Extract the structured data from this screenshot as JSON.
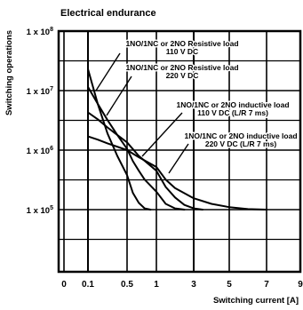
{
  "chart_data": {
    "type": "line",
    "title": "Electrical endurance",
    "ylabel": "Switching operations",
    "xlabel": "Switching current [A]",
    "y_scale": "log",
    "ylim_exponents": [
      4,
      8
    ],
    "xlim": [
      -0.3,
      9
    ],
    "grid": true,
    "x_ticks": [
      {
        "value": 0,
        "label": "0"
      },
      {
        "value": 0.1,
        "label": "0.1"
      },
      {
        "value": 0.5,
        "label": "0.5"
      },
      {
        "value": 1,
        "label": "1"
      },
      {
        "value": 3,
        "label": "3"
      },
      {
        "value": 5,
        "label": "5"
      },
      {
        "value": 7,
        "label": "7"
      },
      {
        "value": 9,
        "label": "9"
      }
    ],
    "y_ticks": [
      {
        "exponent": 8,
        "base": "1 x 10",
        "sup": "8"
      },
      {
        "exponent": 7,
        "base": "1 x 10",
        "sup": "7"
      },
      {
        "exponent": 6,
        "base": "1 x 10",
        "sup": "6"
      },
      {
        "exponent": 5,
        "base": "1 x 10",
        "sup": "5"
      }
    ],
    "y_minor_grid_exponents": [
      7.5,
      6.5,
      5.5,
      4.5
    ],
    "series": [
      {
        "name": "1NO/1NC or 2NO Resistive load 110 V DC",
        "label_lines": [
          "1NO/1NC or 2NO Resistive load",
          "110 V DC"
        ],
        "points": [
          [
            0.1,
            23000000.0
          ],
          [
            0.2,
            6000000.0
          ],
          [
            0.3,
            1900000.0
          ],
          [
            0.4,
            800000.0
          ],
          [
            0.5,
            380000.0
          ],
          [
            0.6,
            190000.0
          ],
          [
            0.7,
            130000.0
          ],
          [
            0.8,
            105000.0
          ],
          [
            0.9,
            100000.0
          ]
        ]
      },
      {
        "name": "1NO/1NC or 2NO Resistive load 220 V DC",
        "label_lines": [
          "1NO/1NC or 2NO Resistive load",
          "220 V DC"
        ],
        "points": [
          [
            0.1,
            11500000.0
          ],
          [
            0.2,
            6000000.0
          ],
          [
            0.3,
            3200000.0
          ],
          [
            0.4,
            1800000.0
          ],
          [
            0.5,
            1050000.0
          ],
          [
            0.6,
            650000.0
          ],
          [
            0.7,
            450000.0
          ],
          [
            0.8,
            320000.0
          ],
          [
            1,
            200000.0
          ],
          [
            1.5,
            125000.0
          ],
          [
            2,
            105000.0
          ],
          [
            2.5,
            100000.0
          ]
        ]
      },
      {
        "name": "1NO/1NC or 2NO inductive load 110 V DC (L/R 7 ms)",
        "label_lines": [
          "1NO/1NC or 2NO inductive load",
          "110 V DC (L/R 7 ms)"
        ],
        "points": [
          [
            0.1,
            4300000.0
          ],
          [
            0.2,
            3300000.0
          ],
          [
            0.3,
            2400000.0
          ],
          [
            0.5,
            1350000.0
          ],
          [
            0.7,
            800000.0
          ],
          [
            1,
            450000.0
          ],
          [
            1.5,
            240000.0
          ],
          [
            2,
            160000.0
          ],
          [
            2.5,
            120000.0
          ],
          [
            3,
            105000.0
          ],
          [
            3.5,
            100000.0
          ]
        ]
      },
      {
        "name": "1NO/1NC or 2NO inductive load 220 V DC (L/R 7 ms)",
        "label_lines": [
          "1NO/1NC or 2NO inductive load",
          "220 V DC (L/R 7 ms)"
        ],
        "points": [
          [
            0.1,
            1700000.0
          ],
          [
            0.2,
            1500000.0
          ],
          [
            0.3,
            1300000.0
          ],
          [
            0.5,
            1000000.0
          ],
          [
            0.7,
            760000.0
          ],
          [
            1,
            520000.0
          ],
          [
            1.5,
            320000.0
          ],
          [
            2,
            230000.0
          ],
          [
            3,
            155000.0
          ],
          [
            4,
            125000.0
          ],
          [
            5,
            110000.0
          ],
          [
            6,
            102000.0
          ],
          [
            7,
            100000.0
          ]
        ]
      }
    ]
  }
}
